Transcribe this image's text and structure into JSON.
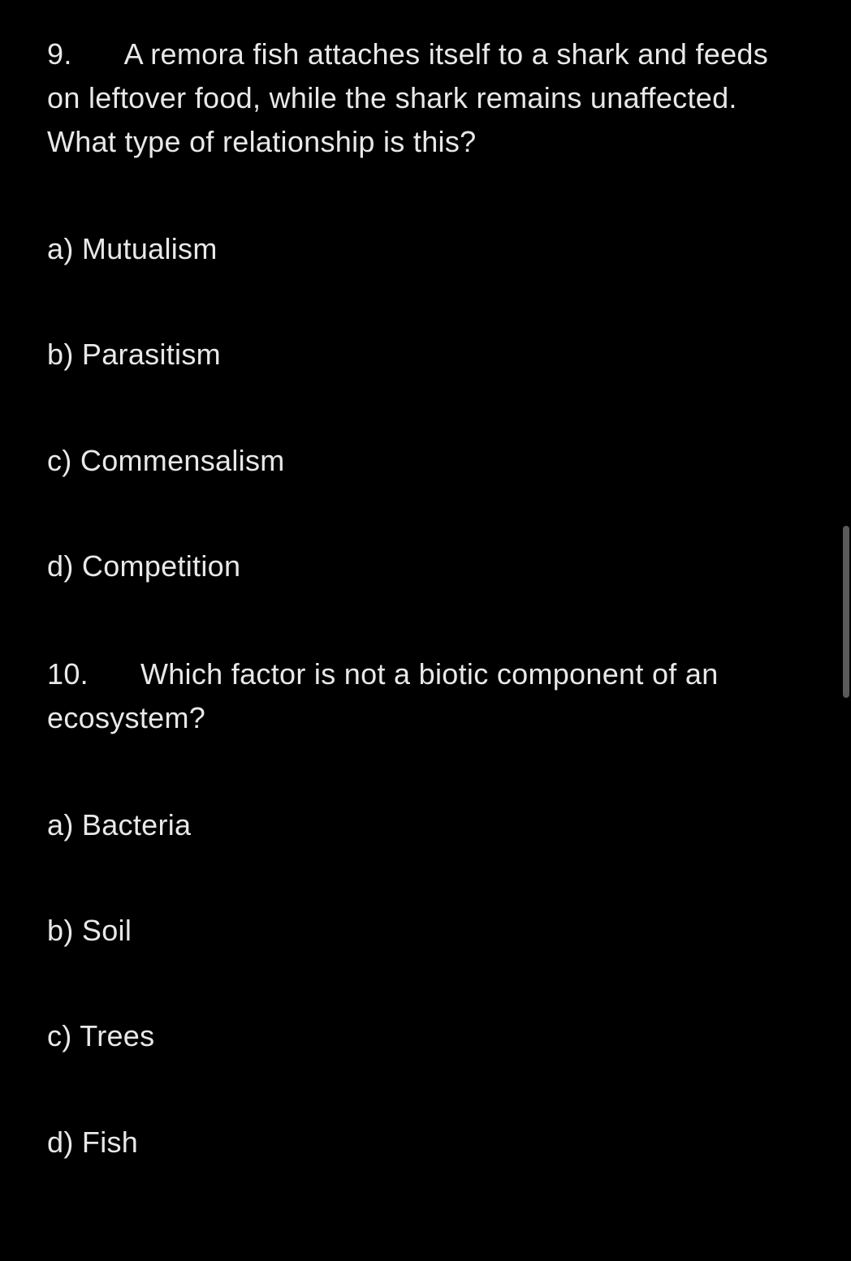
{
  "questions": [
    {
      "number": "9.",
      "text": "A remora fish attaches itself to a shark and feeds on leftover food, while the shark remains unaffected. What type of relationship is this?",
      "options": [
        "a) Mutualism",
        "b) Parasitism",
        "c) Commensalism",
        "d) Competition"
      ]
    },
    {
      "number": "10.",
      "text": "Which factor is not a biotic component of an ecosystem?",
      "options": [
        "a) Bacteria",
        "b) Soil",
        "c) Trees",
        "d) Fish"
      ]
    }
  ],
  "colors": {
    "background": "#000000",
    "text": "#e8e8e8",
    "scrollbar": "#5a5a5a"
  },
  "typography": {
    "fontsize": 36,
    "lineheight": 1.5,
    "fontfamily": "-apple-system"
  }
}
